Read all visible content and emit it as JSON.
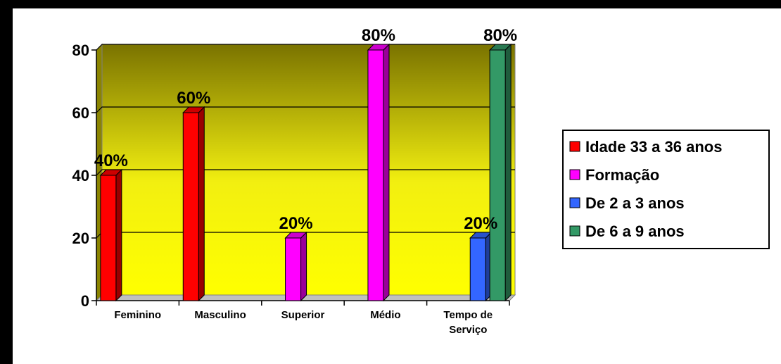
{
  "chart_data": {
    "type": "bar",
    "categories": [
      [
        "Feminino"
      ],
      [
        "Masculino"
      ],
      [
        "Superior"
      ],
      [
        "Médio"
      ],
      [
        "Tempo de",
        "Serviço"
      ]
    ],
    "series": [
      {
        "name": "Idade 33 a 36 anos",
        "color": "#ff0000",
        "values": [
          40,
          60,
          null,
          null,
          null
        ]
      },
      {
        "name": "Formação",
        "color": "#ff00ff",
        "values": [
          null,
          null,
          20,
          80,
          null
        ]
      },
      {
        "name": "De 2 a 3 anos",
        "color": "#3366ff",
        "values": [
          null,
          null,
          null,
          null,
          20
        ]
      },
      {
        "name": "De 6 a 9 anos",
        "color": "#339966",
        "values": [
          null,
          null,
          null,
          null,
          80
        ]
      }
    ],
    "data_labels": [
      {
        "series": 0,
        "category": 0,
        "text": "40%"
      },
      {
        "series": 0,
        "category": 1,
        "text": "60%"
      },
      {
        "series": 1,
        "category": 2,
        "text": "20%"
      },
      {
        "series": 1,
        "category": 3,
        "text": "80%"
      },
      {
        "series": 2,
        "category": 4,
        "text": "20%"
      },
      {
        "series": 3,
        "category": 4,
        "text": "80%"
      }
    ],
    "ylim": [
      0,
      80
    ],
    "yticks": [
      0,
      20,
      40,
      60,
      80
    ],
    "grid": true,
    "legend_position": "right",
    "background_gradient": [
      "#7a7300",
      "#ffff00"
    ],
    "xlabel": "",
    "ylabel": "",
    "title": ""
  }
}
